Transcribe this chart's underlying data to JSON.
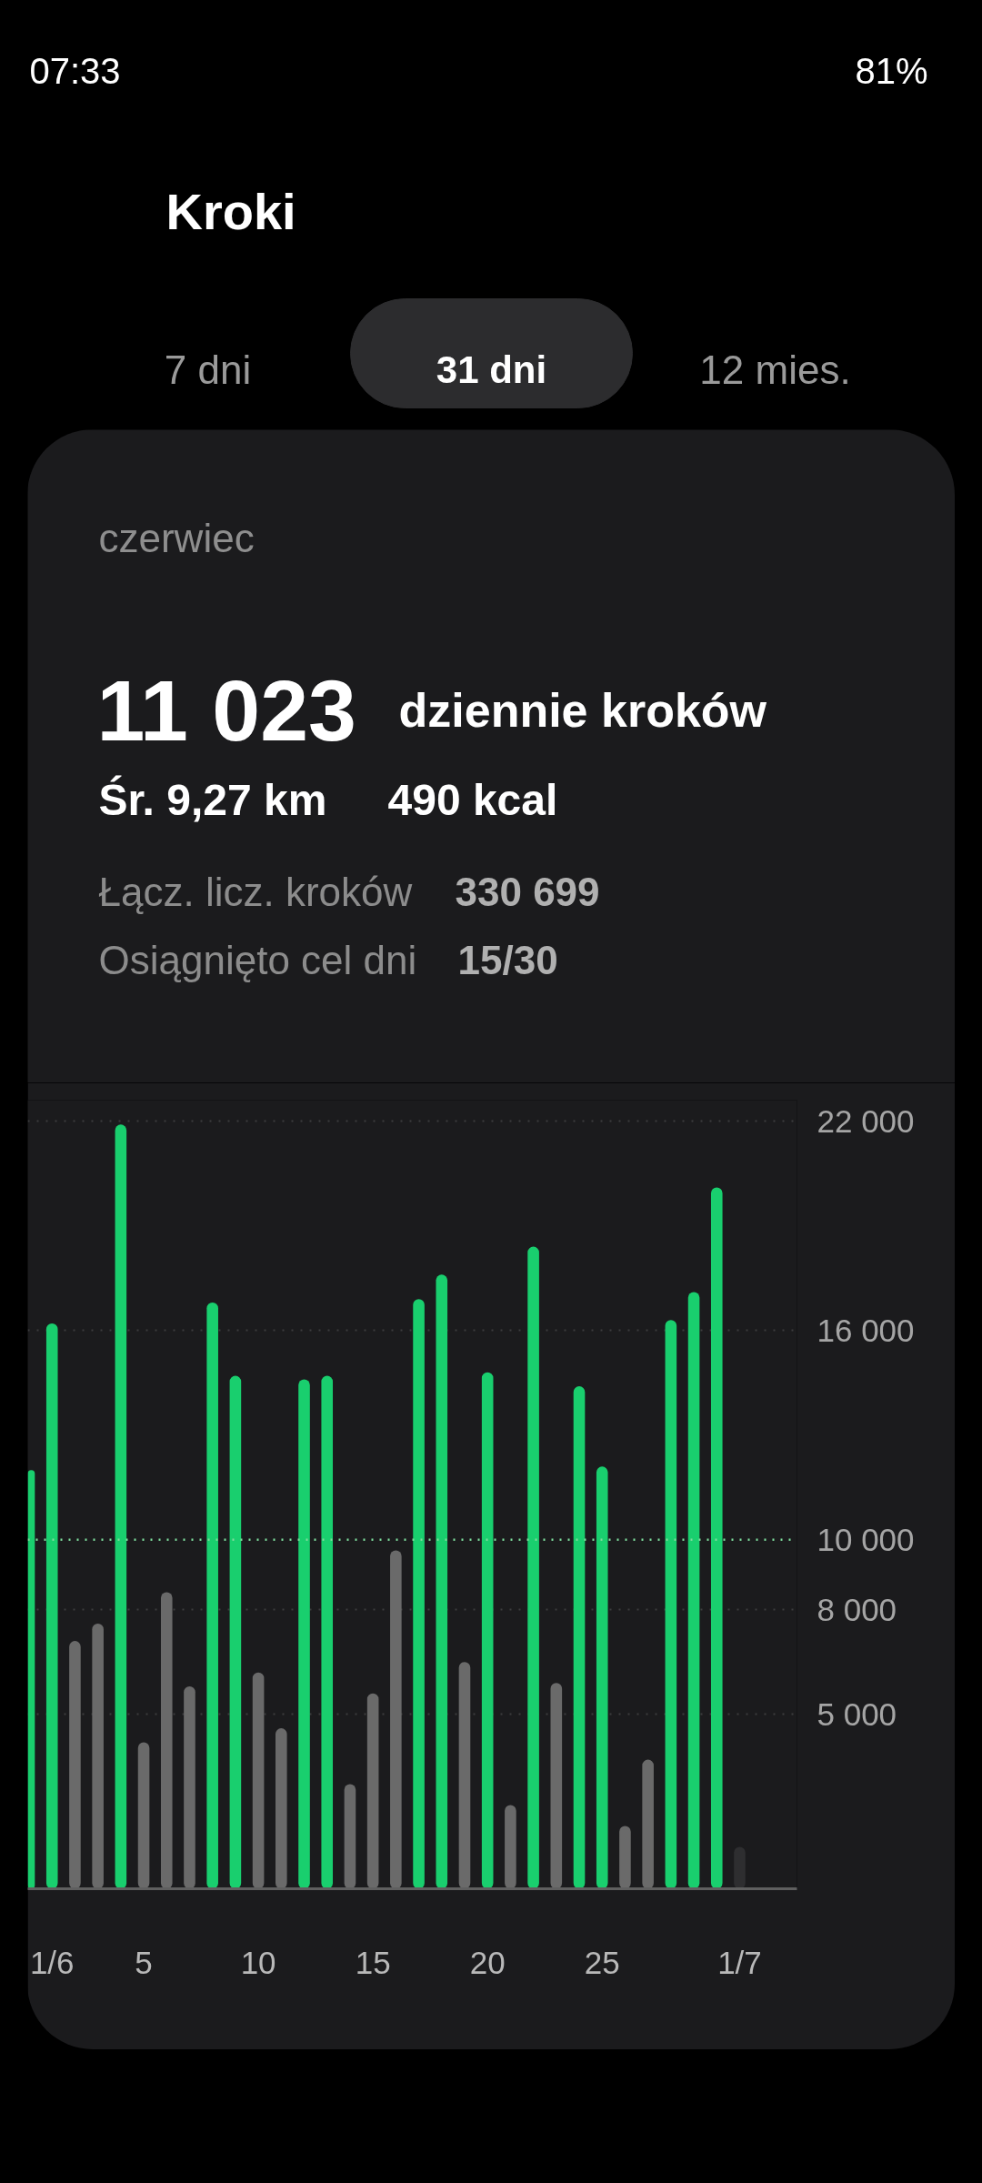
{
  "chart_data": {
    "type": "bar",
    "title": "Kroki",
    "subtitle": "czerwiec",
    "annotations": [
      "07:33",
      "81%",
      "7 dni",
      "31 dni",
      "12 mies.",
      "11 023",
      "dziennie kroków",
      "Śr. 9,27 km",
      "490 kcal",
      "Łącz. licz. kroków",
      "330 699",
      "Osiągnięto cel dni",
      "15/30"
    ],
    "categories": [
      null,
      "1/6",
      null,
      null,
      null,
      "5",
      null,
      null,
      null,
      null,
      "10",
      null,
      null,
      null,
      null,
      "15",
      null,
      null,
      null,
      null,
      "20",
      null,
      null,
      null,
      null,
      "25",
      null,
      null,
      null,
      null,
      null,
      "1/7"
    ],
    "values": [
      12000,
      16200,
      7100,
      7600,
      21900,
      4200,
      8500,
      5800,
      16800,
      14700,
      6200,
      4600,
      14600,
      14700,
      3000,
      5600,
      9700,
      16900,
      17600,
      6500,
      14800,
      2400,
      18400,
      5900,
      14400,
      12100,
      1800,
      3700,
      16300,
      17100,
      20100,
      1200
    ],
    "colors": [
      "#19cf6e",
      "#19cf6e",
      "#6a6a6a",
      "#6a6a6a",
      "#19cf6e",
      "#6a6a6a",
      "#6a6a6a",
      "#6a6a6a",
      "#19cf6e",
      "#19cf6e",
      "#6a6a6a",
      "#6a6a6a",
      "#19cf6e",
      "#19cf6e",
      "#6a6a6a",
      "#6a6a6a",
      "#6a6a6a",
      "#19cf6e",
      "#19cf6e",
      "#6a6a6a",
      "#19cf6e",
      "#6a6a6a",
      "#19cf6e",
      "#6a6a6a",
      "#19cf6e",
      "#19cf6e",
      "#6a6a6a",
      "#6a6a6a",
      "#19cf6e",
      "#19cf6e",
      "#19cf6e",
      "#2e2e30"
    ],
    "ylim": [
      0,
      22600
    ],
    "yticks": [
      {
        "value": 5000,
        "label": "5 000"
      },
      {
        "value": 8000,
        "label": "8 000"
      },
      {
        "value": 16000,
        "label": "16 000"
      },
      {
        "value": 22000,
        "label": "22 000"
      }
    ],
    "ref_lines": [
      {
        "axis": "y",
        "value": 10000,
        "label": "10 000",
        "color": "#7ddc9c",
        "line_style": "dotted"
      }
    ],
    "grid": "y"
  }
}
